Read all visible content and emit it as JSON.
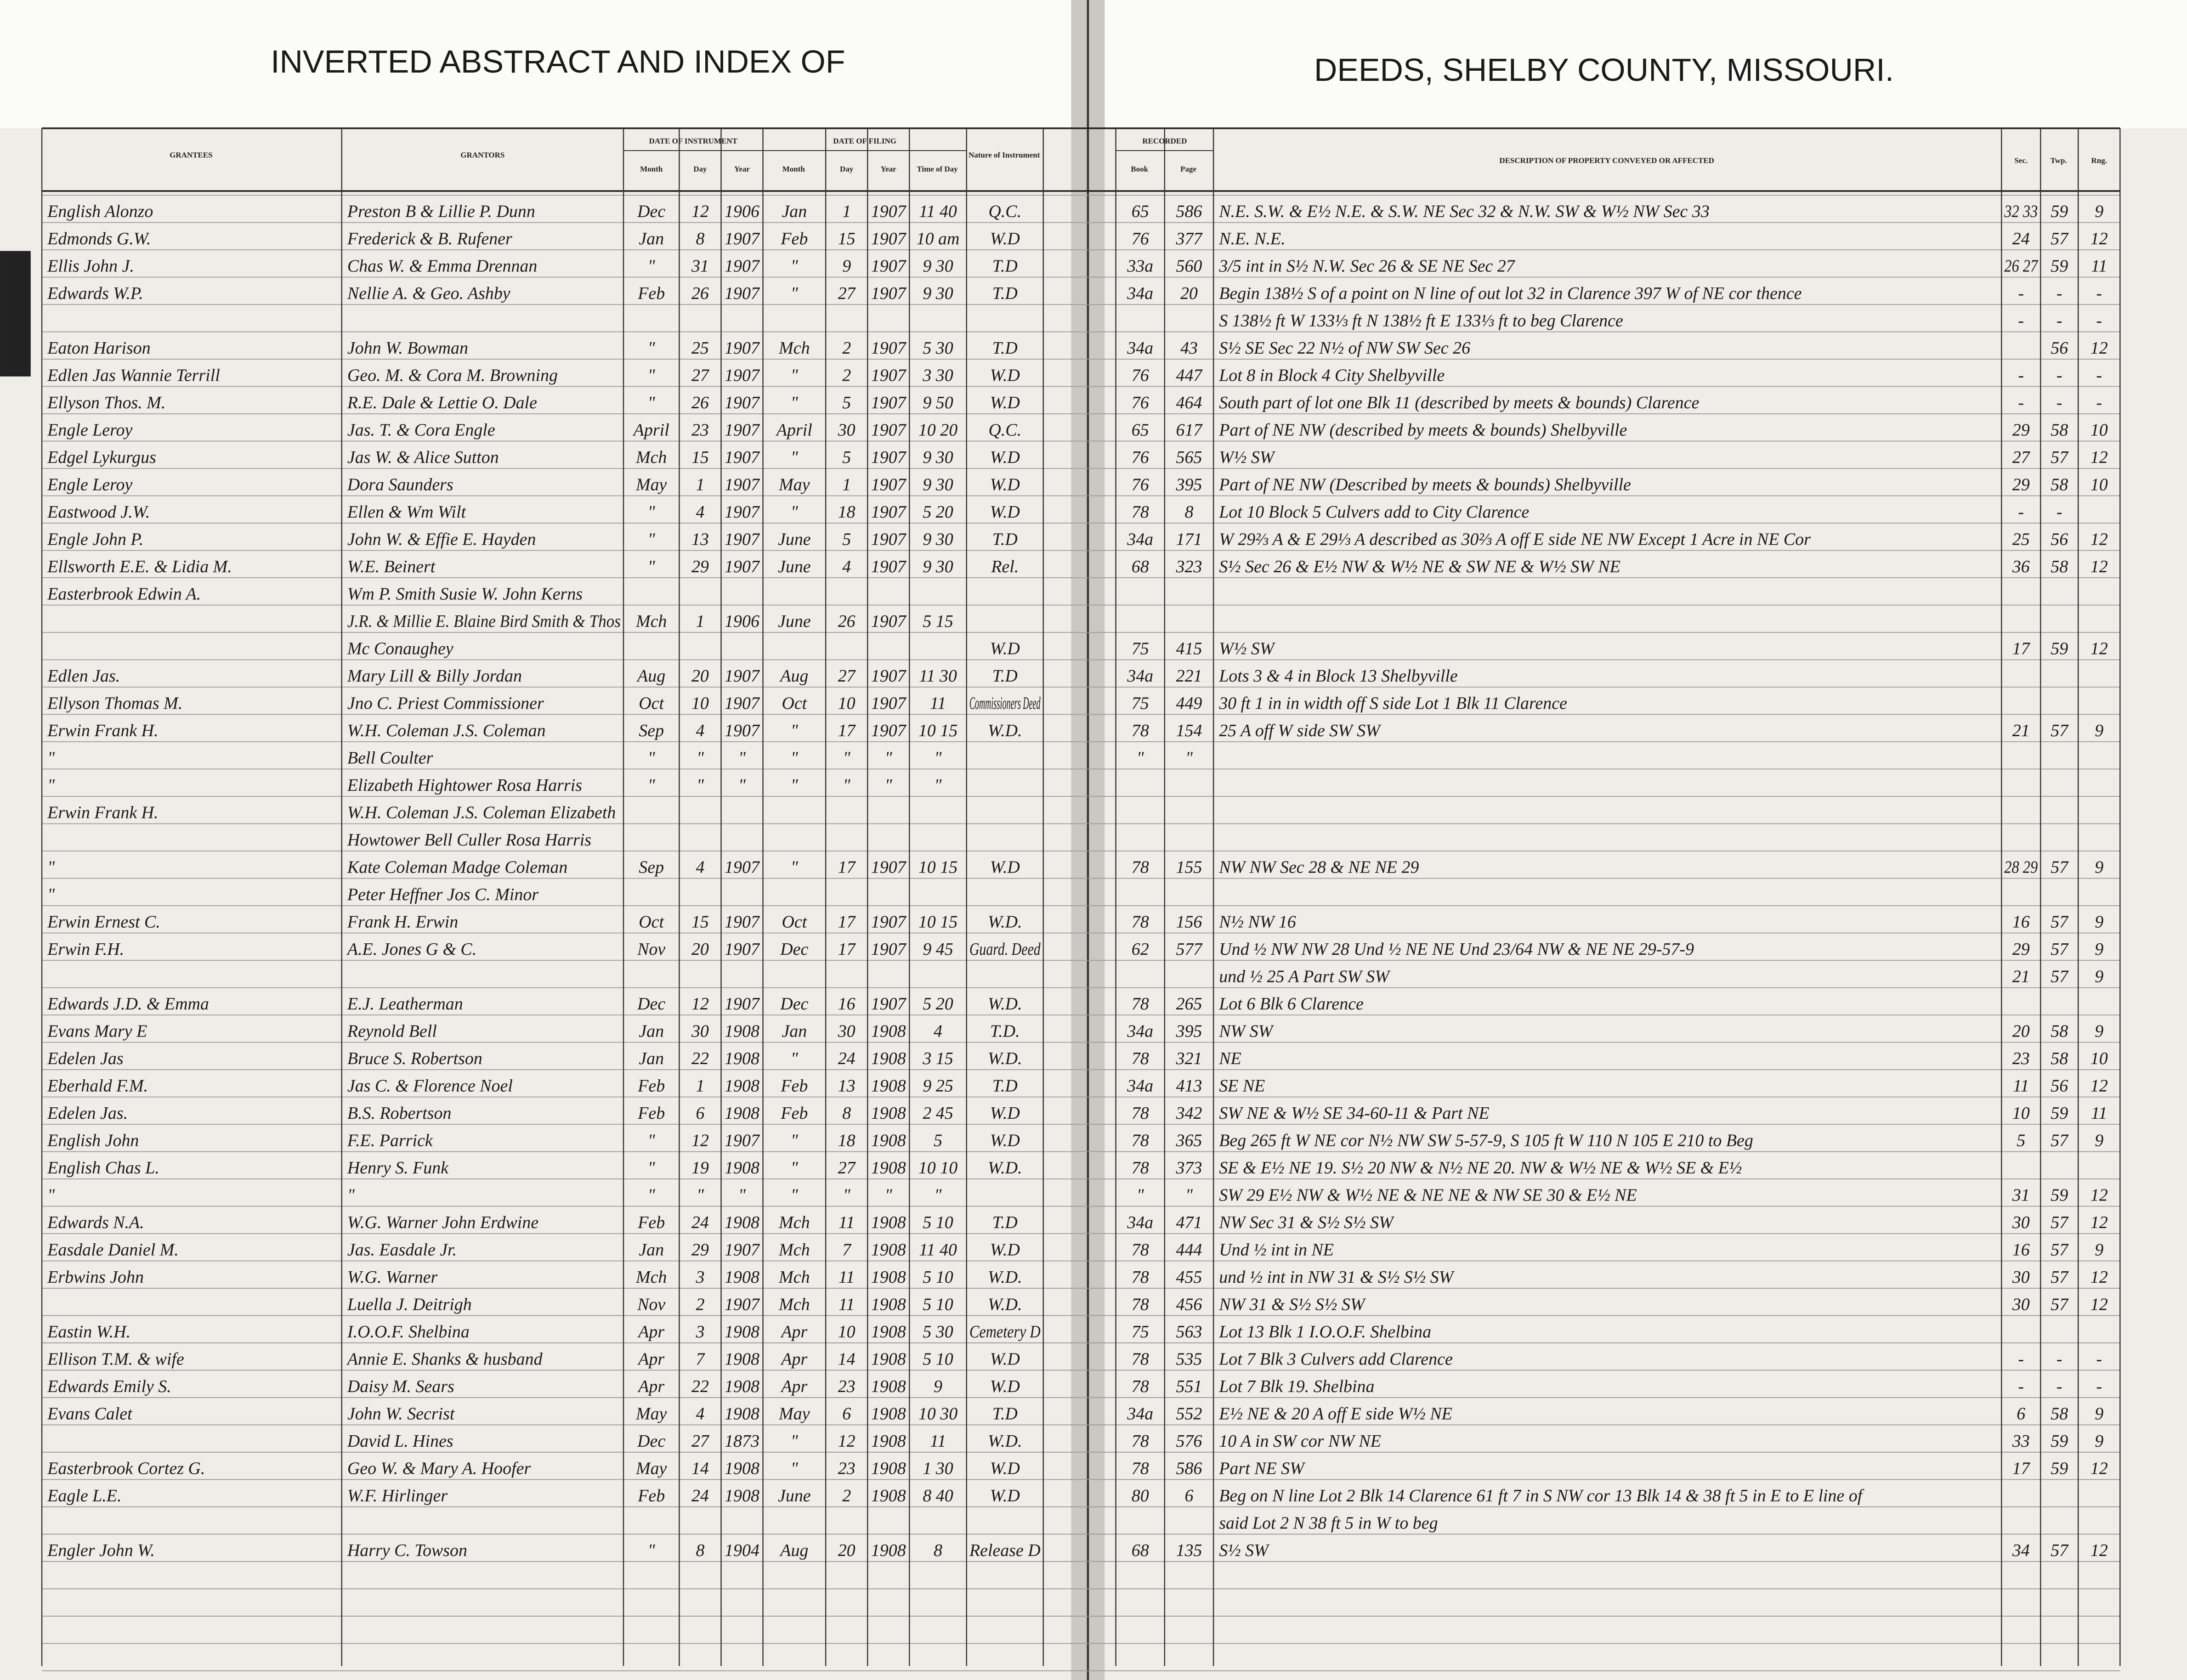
{
  "header": {
    "left_title": "INVERTED ABSTRACT AND INDEX OF",
    "right_title": "DEEDS, SHELBY COUNTY, MISSOURI."
  },
  "columns": {
    "grantees": "GRANTEES",
    "grantors": "GRANTORS",
    "date_of_instrument": "DATE OF INSTRUMENT",
    "inst_month": "Month",
    "inst_day": "Day",
    "inst_year": "Year",
    "date_of_filing": "DATE OF FILING",
    "fil_month": "Month",
    "fil_day": "Day",
    "fil_year": "Year",
    "fil_time": "Time of Day",
    "nature": "Nature of Instrument",
    "recorded": "RECORDED",
    "book": "Book",
    "page": "Page",
    "description": "DESCRIPTION OF PROPERTY CONVEYED OR AFFECTED",
    "sec": "Sec.",
    "twp": "Twp.",
    "rng": "Rng."
  },
  "rows": [
    {
      "grantee": "English Alonzo",
      "grantor": "Preston B & Lillie P. Dunn",
      "inst_month": "Dec",
      "inst_day": "12",
      "inst_year": "1906",
      "fil_month": "Jan",
      "fil_day": "1",
      "fil_year": "1907",
      "fil_time": "11 40",
      "nature": "Q.C.",
      "book": "65",
      "page": "586",
      "description": "N.E. S.W. & E½ N.E. & S.W. NE Sec 32 & N.W. SW & W½ NW Sec 33",
      "sec": "32 33",
      "twp": "59",
      "rng": "9"
    },
    {
      "grantee": "Edmonds G.W.",
      "grantor": "Frederick & B. Rufener",
      "inst_month": "Jan",
      "inst_day": "8",
      "inst_year": "1907",
      "fil_month": "Feb",
      "fil_day": "15",
      "fil_year": "1907",
      "fil_time": "10 am",
      "nature": "W.D",
      "book": "76",
      "page": "377",
      "description": "N.E. N.E.",
      "sec": "24",
      "twp": "57",
      "rng": "12"
    },
    {
      "grantee": "Ellis John J.",
      "grantor": "Chas W. & Emma Drennan",
      "inst_month": "\"",
      "inst_day": "31",
      "inst_year": "1907",
      "fil_month": "\"",
      "fil_day": "9",
      "fil_year": "1907",
      "fil_time": "9 30",
      "nature": "T.D",
      "book": "33a",
      "page": "560",
      "description": "3/5 int in S½ N.W. Sec 26 & SE NE Sec 27",
      "sec": "26 27",
      "twp": "59",
      "rng": "11"
    },
    {
      "grantee": "Edwards W.P.",
      "grantor": "Nellie A. & Geo. Ashby",
      "inst_month": "Feb",
      "inst_day": "26",
      "inst_year": "1907",
      "fil_month": "\"",
      "fil_day": "27",
      "fil_year": "1907",
      "fil_time": "9 30",
      "nature": "T.D",
      "book": "34a",
      "page": "20",
      "description": "Begin 138½ S of a point on N line of out lot 32 in Clarence 397 W of NE cor thence",
      "sec": "-",
      "twp": "-",
      "rng": "-"
    },
    {
      "description": "S 138½ ft W 133⅓ ft N 138½ ft E 133⅓ ft to beg        Clarence",
      "sec": "-",
      "twp": "-",
      "rng": "-"
    },
    {
      "grantee": "Eaton Harison",
      "grantor": "John W. Bowman",
      "inst_month": "\"",
      "inst_day": "25",
      "inst_year": "1907",
      "fil_month": "Mch",
      "fil_day": "2",
      "fil_year": "1907",
      "fil_time": "5 30",
      "nature": "T.D",
      "book": "34a",
      "page": "43",
      "description": "S½ SE Sec 22 N½ of NW SW Sec 26",
      "twp": "56",
      "rng": "12"
    },
    {
      "grantee": "Edlen Jas Wannie Terrill",
      "grantor": "Geo. M. & Cora M. Browning",
      "inst_month": "\"",
      "inst_day": "27",
      "inst_year": "1907",
      "fil_month": "\"",
      "fil_day": "2",
      "fil_year": "1907",
      "fil_time": "3 30",
      "nature": "W.D",
      "book": "76",
      "page": "447",
      "description": "Lot 8 in Block 4 City Shelbyville",
      "sec": "-",
      "twp": "-",
      "rng": "-"
    },
    {
      "grantee": "Ellyson Thos. M.",
      "grantor": "R.E. Dale & Lettie O. Dale",
      "inst_month": "\"",
      "inst_day": "26",
      "inst_year": "1907",
      "fil_month": "\"",
      "fil_day": "5",
      "fil_year": "1907",
      "fil_time": "9 50",
      "nature": "W.D",
      "book": "76",
      "page": "464",
      "description": "South part of lot one Blk 11 (described by meets & bounds)   Clarence",
      "sec": "-",
      "twp": "-",
      "rng": "-"
    },
    {
      "grantee": "Engle Leroy",
      "grantor": "Jas. T. & Cora Engle",
      "inst_month": "April",
      "inst_day": "23",
      "inst_year": "1907",
      "fil_month": "April",
      "fil_day": "30",
      "fil_year": "1907",
      "fil_time": "10 20",
      "nature": "Q.C.",
      "book": "65",
      "page": "617",
      "description": "Part of NE NW (described by meets & bounds)        Shelbyville",
      "sec": "29",
      "twp": "58",
      "rng": "10"
    },
    {
      "grantee": "Edgel Lykurgus",
      "grantor": "Jas W. & Alice Sutton",
      "inst_month": "Mch",
      "inst_day": "15",
      "inst_year": "1907",
      "fil_month": "\"",
      "fil_day": "5",
      "fil_year": "1907",
      "fil_time": "9 30",
      "nature": "W.D",
      "book": "76",
      "page": "565",
      "description": "W½ SW",
      "sec": "27",
      "twp": "57",
      "rng": "12"
    },
    {
      "grantee": "Engle Leroy",
      "grantor": "Dora Saunders",
      "inst_month": "May",
      "inst_day": "1",
      "inst_year": "1907",
      "fil_month": "May",
      "fil_day": "1",
      "fil_year": "1907",
      "fil_time": "9 30",
      "nature": "W.D",
      "book": "76",
      "page": "395",
      "description": "Part of NE NW (Described by meets & bounds)      Shelbyville",
      "sec": "29",
      "twp": "58",
      "rng": "10"
    },
    {
      "grantee": "Eastwood J.W.",
      "grantor": "Ellen & Wm Wilt",
      "inst_month": "\"",
      "inst_day": "4",
      "inst_year": "1907",
      "fil_month": "\"",
      "fil_day": "18",
      "fil_year": "1907",
      "fil_time": "5 20",
      "nature": "W.D",
      "book": "78",
      "page": "8",
      "description": "Lot 10 Block 5 Culvers add to City          Clarence",
      "sec": "-",
      "twp": "-"
    },
    {
      "grantee": "Engle John P.",
      "grantor": "John W. & Effie E. Hayden",
      "inst_month": "\"",
      "inst_day": "13",
      "inst_year": "1907",
      "fil_month": "June",
      "fil_day": "5",
      "fil_year": "1907",
      "fil_time": "9 30",
      "nature": "T.D",
      "book": "34a",
      "page": "171",
      "description": "W 29⅔ A & E 29⅓ A described as 30⅔ A off E side NE NW Except 1 Acre in NE Cor",
      "sec": "25",
      "twp": "56",
      "rng": "12"
    },
    {
      "grantee": "Ellsworth E.E. & Lidia M.",
      "grantor": "W.E. Beinert",
      "inst_month": "\"",
      "inst_day": "29",
      "inst_year": "1907",
      "fil_month": "June",
      "fil_day": "4",
      "fil_year": "1907",
      "fil_time": "9 30",
      "nature": "Rel.",
      "book": "68",
      "page": "323",
      "description": "S½ Sec 26 & E½ NW & W½ NE & SW NE & W½ SW NE",
      "sec": "36",
      "twp": "58",
      "rng": "12"
    },
    {
      "grantee": "Easterbrook Edwin A.",
      "grantor": "Wm P. Smith Susie W. John Kerns"
    },
    {
      "grantor": "J.R. & Millie E. Blaine Bird Smith & Thos",
      "inst_month": "Mch",
      "inst_day": "1",
      "inst_year": "1906",
      "fil_month": "June",
      "fil_day": "26",
      "fil_year": "1907",
      "fil_time": "5 15"
    },
    {
      "grantor": "Mc Conaughey",
      "nature": "W.D",
      "book": "75",
      "page": "415",
      "description": "W½ SW",
      "sec": "17",
      "twp": "59",
      "rng": "12"
    },
    {
      "grantee": "Edlen Jas.",
      "grantor": "Mary Lill & Billy Jordan",
      "inst_month": "Aug",
      "inst_day": "20",
      "inst_year": "1907",
      "fil_month": "Aug",
      "fil_day": "27",
      "fil_year": "1907",
      "fil_time": "11 30",
      "nature": "T.D",
      "book": "34a",
      "page": "221",
      "description": "Lots 3 & 4 in Block 13 Shelbyville"
    },
    {
      "grantee": "Ellyson Thomas M.",
      "grantor": "Jno C. Priest Commissioner",
      "inst_month": "Oct",
      "inst_day": "10",
      "inst_year": "1907",
      "fil_month": "Oct",
      "fil_day": "10",
      "fil_year": "1907",
      "fil_time": "11",
      "nature": "Commissioners Deed",
      "book": "75",
      "page": "449",
      "description": "30 ft 1 in in width off S side Lot 1 Blk 11            Clarence"
    },
    {
      "grantee": "Erwin Frank H.",
      "grantor": "W.H. Coleman J.S. Coleman",
      "inst_month": "Sep",
      "inst_day": "4",
      "inst_year": "1907",
      "fil_month": "\"",
      "fil_day": "17",
      "fil_year": "1907",
      "fil_time": "10 15",
      "nature": "W.D.",
      "book": "78",
      "page": "154",
      "description": "25 A off W side SW SW",
      "sec": "21",
      "twp": "57",
      "rng": "9"
    },
    {
      "grantee": "\"",
      "grantor": "Bell Coulter",
      "inst_month": "\"",
      "inst_day": "\"",
      "inst_year": "\"",
      "fil_month": "\"",
      "fil_day": "\"",
      "fil_year": "\"",
      "fil_time": "\"",
      "book": "\"",
      "page": "\""
    },
    {
      "grantee": "\"",
      "grantor": "Elizabeth Hightower Rosa Harris",
      "inst_month": "\"",
      "inst_day": "\"",
      "inst_year": "\"",
      "fil_month": "\"",
      "fil_day": "\"",
      "fil_year": "\"",
      "fil_time": "\""
    },
    {
      "grantee": "Erwin Frank H.",
      "grantor": "W.H. Coleman J.S. Coleman Elizabeth"
    },
    {
      "grantor": "Howtower Bell Culler Rosa Harris"
    },
    {
      "grantee": "\"",
      "grantor": "Kate Coleman Madge Coleman",
      "inst_month": "Sep",
      "inst_day": "4",
      "inst_year": "1907",
      "fil_month": "\"",
      "fil_day": "17",
      "fil_year": "1907",
      "fil_time": "10 15",
      "nature": "W.D",
      "book": "78",
      "page": "155",
      "description": "NW NW Sec 28 & NE NE 29",
      "sec": "28 29",
      "twp": "57",
      "rng": "9"
    },
    {
      "grantee": "\"",
      "grantor": "Peter Heffner Jos C. Minor"
    },
    {
      "grantee": "Erwin Ernest C.",
      "grantor": "Frank H. Erwin",
      "inst_month": "Oct",
      "inst_day": "15",
      "inst_year": "1907",
      "fil_month": "Oct",
      "fil_day": "17",
      "fil_year": "1907",
      "fil_time": "10 15",
      "nature": "W.D.",
      "book": "78",
      "page": "156",
      "description": "N½ NW 16",
      "sec": "16",
      "twp": "57",
      "rng": "9"
    },
    {
      "grantee": "Erwin F.H.",
      "grantor": "A.E. Jones G & C.",
      "inst_month": "Nov",
      "inst_day": "20",
      "inst_year": "1907",
      "fil_month": "Dec",
      "fil_day": "17",
      "fil_year": "1907",
      "fil_time": "9 45",
      "nature": "Guard. Deed",
      "book": "62",
      "page": "577",
      "description": "Und ½ NW NW 28 Und ½ NE NE Und 23/64 NW & NE NE 29-57-9",
      "sec": "29",
      "twp": "57",
      "rng": "9"
    },
    {
      "description": "und ½ 25 A Part SW SW",
      "sec": "21",
      "twp": "57",
      "rng": "9"
    },
    {
      "grantee": "Edwards J.D. & Emma",
      "grantor": "E.J. Leatherman",
      "inst_month": "Dec",
      "inst_day": "12",
      "inst_year": "1907",
      "fil_month": "Dec",
      "fil_day": "16",
      "fil_year": "1907",
      "fil_time": "5 20",
      "nature": "W.D.",
      "book": "78",
      "page": "265",
      "description": "Lot 6 Blk 6                    Clarence"
    },
    {
      "grantee": "Evans Mary E",
      "grantor": "Reynold Bell",
      "inst_month": "Jan",
      "inst_day": "30",
      "inst_year": "1908",
      "fil_month": "Jan",
      "fil_day": "30",
      "fil_year": "1908",
      "fil_time": "4",
      "nature": "T.D.",
      "book": "34a",
      "page": "395",
      "description": "NW SW",
      "sec": "20",
      "twp": "58",
      "rng": "9"
    },
    {
      "grantee": "Edelen Jas",
      "grantor": "Bruce S. Robertson",
      "inst_month": "Jan",
      "inst_day": "22",
      "inst_year": "1908",
      "fil_month": "\"",
      "fil_day": "24",
      "fil_year": "1908",
      "fil_time": "3 15",
      "nature": "W.D.",
      "book": "78",
      "page": "321",
      "description": "NE",
      "sec": "23",
      "twp": "58",
      "rng": "10"
    },
    {
      "grantee": "Eberhald F.M.",
      "grantor": "Jas C. & Florence Noel",
      "inst_month": "Feb",
      "inst_day": "1",
      "inst_year": "1908",
      "fil_month": "Feb",
      "fil_day": "13",
      "fil_year": "1908",
      "fil_time": "9 25",
      "nature": "T.D",
      "book": "34a",
      "page": "413",
      "description": "SE NE",
      "sec": "11",
      "twp": "56",
      "rng": "12"
    },
    {
      "grantee": "Edelen Jas.",
      "grantor": "B.S. Robertson",
      "inst_month": "Feb",
      "inst_day": "6",
      "inst_year": "1908",
      "fil_month": "Feb",
      "fil_day": "8",
      "fil_year": "1908",
      "fil_time": "2 45",
      "nature": "W.D",
      "book": "78",
      "page": "342",
      "description": "SW NE & W½ SE 34-60-11 & Part NE",
      "sec": "10",
      "twp": "59",
      "rng": "11"
    },
    {
      "grantee": "English John",
      "grantor": "F.E. Parrick",
      "inst_month": "\"",
      "inst_day": "12",
      "inst_year": "1907",
      "fil_month": "\"",
      "fil_day": "18",
      "fil_year": "1908",
      "fil_time": "5",
      "nature": "W.D",
      "book": "78",
      "page": "365",
      "description": "Beg 265 ft W NE cor N½ NW SW 5-57-9, S 105 ft W 110 N 105 E 210 to Beg",
      "sec": "5",
      "twp": "57",
      "rng": "9"
    },
    {
      "grantee": "English Chas L.",
      "grantor": "Henry S. Funk",
      "inst_month": "\"",
      "inst_day": "19",
      "inst_year": "1908",
      "fil_month": "\"",
      "fil_day": "27",
      "fil_year": "1908",
      "fil_time": "10 10",
      "nature": "W.D.",
      "book": "78",
      "page": "373",
      "description": "SE & E½ NE 19. S½ 20 NW & N½ NE 20. NW & W½ NE & W½ SE & E½"
    },
    {
      "grantee": "\"",
      "grantor": "\"",
      "inst_month": "\"",
      "inst_day": "\"",
      "inst_year": "\"",
      "fil_month": "\"",
      "fil_day": "\"",
      "fil_year": "\"",
      "fil_time": "\"",
      "book": "\"",
      "page": "\"",
      "description": "SW 29 E½ NW & W½ NE & NE NE & NW SE 30 & E½ NE",
      "sec": "31",
      "twp": "59",
      "rng": "12"
    },
    {
      "grantee": "Edwards N.A.",
      "grantor": "W.G. Warner John Erdwine",
      "inst_month": "Feb",
      "inst_day": "24",
      "inst_year": "1908",
      "fil_month": "Mch",
      "fil_day": "11",
      "fil_year": "1908",
      "fil_time": "5 10",
      "nature": "T.D",
      "book": "34a",
      "page": "471",
      "description": "NW Sec 31 & S½ S½ SW",
      "sec": "30",
      "twp": "57",
      "rng": "12"
    },
    {
      "grantee": "Easdale Daniel M.",
      "grantor": "Jas. Easdale Jr.",
      "inst_month": "Jan",
      "inst_day": "29",
      "inst_year": "1907",
      "fil_month": "Mch",
      "fil_day": "7",
      "fil_year": "1908",
      "fil_time": "11 40",
      "nature": "W.D",
      "book": "78",
      "page": "444",
      "description": "Und ½ int in NE",
      "sec": "16",
      "twp": "57",
      "rng": "9"
    },
    {
      "grantee": "Erbwins John",
      "grantor": "W.G. Warner",
      "inst_month": "Mch",
      "inst_day": "3",
      "inst_year": "1908",
      "fil_month": "Mch",
      "fil_day": "11",
      "fil_year": "1908",
      "fil_time": "5 10",
      "nature": "W.D.",
      "book": "78",
      "page": "455",
      "description": "und ½ int in NW 31 & S½ S½ SW",
      "sec": "30",
      "twp": "57",
      "rng": "12"
    },
    {
      "grantor": "Luella J. Deitrigh",
      "inst_month": "Nov",
      "inst_day": "2",
      "inst_year": "1907",
      "fil_month": "Mch",
      "fil_day": "11",
      "fil_year": "1908",
      "fil_time": "5 10",
      "nature": "W.D.",
      "book": "78",
      "page": "456",
      "description": "NW 31 & S½ S½ SW",
      "sec": "30",
      "twp": "57",
      "rng": "12"
    },
    {
      "grantee": "Eastin W.H.",
      "grantor": "I.O.O.F. Shelbina",
      "inst_month": "Apr",
      "inst_day": "3",
      "inst_year": "1908",
      "fil_month": "Apr",
      "fil_day": "10",
      "fil_year": "1908",
      "fil_time": "5 30",
      "nature": "Cemetery D",
      "book": "75",
      "page": "563",
      "description": "Lot 13 Blk 1  I.O.O.F.  Shelbina"
    },
    {
      "grantee": "Ellison T.M. & wife",
      "grantor": "Annie E. Shanks & husband",
      "inst_month": "Apr",
      "inst_day": "7",
      "inst_year": "1908",
      "fil_month": "Apr",
      "fil_day": "14",
      "fil_year": "1908",
      "fil_time": "5 10",
      "nature": "W.D",
      "book": "78",
      "page": "535",
      "description": "Lot 7 Blk 3        Culvers add        Clarence",
      "sec": "-",
      "twp": "-",
      "rng": "-"
    },
    {
      "grantee": "Edwards Emily S.",
      "grantor": "Daisy M. Sears",
      "inst_month": "Apr",
      "inst_day": "22",
      "inst_year": "1908",
      "fil_month": "Apr",
      "fil_day": "23",
      "fil_year": "1908",
      "fil_time": "9",
      "nature": "W.D",
      "book": "78",
      "page": "551",
      "description": "Lot 7 Blk 19.                   Shelbina",
      "sec": "-",
      "twp": "-",
      "rng": "-"
    },
    {
      "grantee": "Evans Calet",
      "grantor": "John W. Secrist",
      "inst_month": "May",
      "inst_day": "4",
      "inst_year": "1908",
      "fil_month": "May",
      "fil_day": "6",
      "fil_year": "1908",
      "fil_time": "10 30",
      "nature": "T.D",
      "book": "34a",
      "page": "552",
      "description": "E½ NE & 20 A off E side W½ NE",
      "sec": "6",
      "twp": "58",
      "rng": "9"
    },
    {
      "grantor": "David L. Hines",
      "inst_month": "Dec",
      "inst_day": "27",
      "inst_year": "1873",
      "fil_month": "\"",
      "fil_day": "12",
      "fil_year": "1908",
      "fil_time": "11",
      "nature": "W.D.",
      "book": "78",
      "page": "576",
      "description": "10 A in SW cor NW NE",
      "sec": "33",
      "twp": "59",
      "rng": "9"
    },
    {
      "grantee": "Easterbrook Cortez G.",
      "grantor": "Geo W. & Mary A. Hoofer",
      "inst_month": "May",
      "inst_day": "14",
      "inst_year": "1908",
      "fil_month": "\"",
      "fil_day": "23",
      "fil_year": "1908",
      "fil_time": "1 30",
      "nature": "W.D",
      "book": "78",
      "page": "586",
      "description": "Part NE SW",
      "sec": "17",
      "twp": "59",
      "rng": "12"
    },
    {
      "grantee": "Eagle L.E.",
      "grantor": "W.F. Hirlinger",
      "inst_month": "Feb",
      "inst_day": "24",
      "inst_year": "1908",
      "fil_month": "June",
      "fil_day": "2",
      "fil_year": "1908",
      "fil_time": "8 40",
      "nature": "W.D",
      "book": "80",
      "page": "6",
      "description": "Beg on N line Lot 2 Blk 14 Clarence 61 ft 7 in S NW cor 13 Blk 14 & 38 ft 5 in E to E line of"
    },
    {
      "description": "said Lot 2 N 38 ft 5 in W to beg"
    },
    {
      "grantee": "Engler John W.",
      "grantor": "Harry C. Towson",
      "inst_month": "\"",
      "inst_day": "8",
      "inst_year": "1904",
      "fil_month": "Aug",
      "fil_day": "20",
      "fil_year": "1908",
      "fil_time": "8",
      "nature": "Release D",
      "book": "68",
      "page": "135",
      "description": "S½ SW",
      "sec": "34",
      "twp": "57",
      "rng": "12"
    }
  ]
}
